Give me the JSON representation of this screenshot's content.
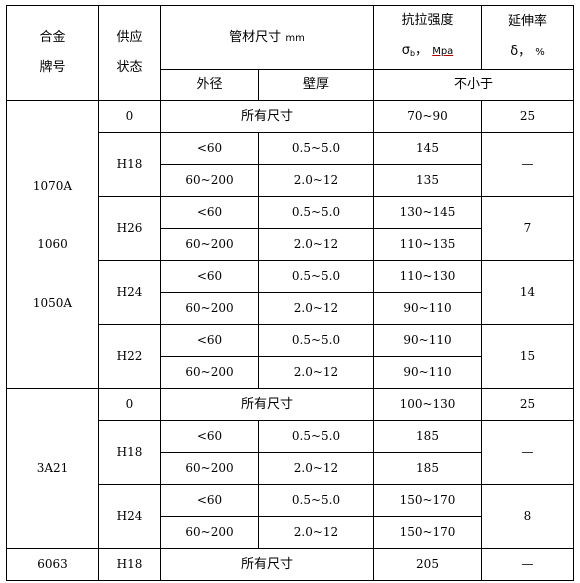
{
  "header": {
    "alloy_line1": "合金",
    "alloy_line2": "牌号",
    "temper_line1": "供应",
    "temper_line2": "状态",
    "tube_size_label": "管材尺寸",
    "tube_size_unit": "mm",
    "tensile_label": "抗拉强度",
    "tensile_symbol": "σ",
    "tensile_sub": "b",
    "tensile_sep": "，",
    "tensile_unit": "Mpa",
    "elong_label": "延伸率",
    "elong_symbol": "δ，",
    "elong_unit": "%",
    "outer_diameter": "外径",
    "wall_thickness": "壁厚",
    "not_less_than": "不小于"
  },
  "groups": [
    {
      "alloys": [
        "1070A",
        "1060",
        "1050A"
      ],
      "tempers": [
        {
          "temper": "0",
          "rows": [
            {
              "all_sizes": "所有尺寸",
              "tensile": "70~90"
            }
          ],
          "elongation": "25"
        },
        {
          "temper": "H18",
          "rows": [
            {
              "od": "<60",
              "wall": "0.5~5.0",
              "tensile": "145"
            },
            {
              "od": "60~200",
              "wall": "2.0~12",
              "tensile": "135"
            }
          ],
          "elongation": "—"
        },
        {
          "temper": "H26",
          "rows": [
            {
              "od": "<60",
              "wall": "0.5~5.0",
              "tensile": "130~145"
            },
            {
              "od": "60~200",
              "wall": "2.0~12",
              "tensile": "110~135"
            }
          ],
          "elongation": "7"
        },
        {
          "temper": "H24",
          "rows": [
            {
              "od": "<60",
              "wall": "0.5~5.0",
              "tensile": "110~130"
            },
            {
              "od": "60~200",
              "wall": "2.0~12",
              "tensile": "90~110"
            }
          ],
          "elongation": "14"
        },
        {
          "temper": "H22",
          "rows": [
            {
              "od": "<60",
              "wall": "0.5~5.0",
              "tensile": "90~110"
            },
            {
              "od": "60~200",
              "wall": "2.0~12",
              "tensile": "90~110"
            }
          ],
          "elongation": "15"
        }
      ]
    },
    {
      "alloys": [
        "3A21"
      ],
      "tempers": [
        {
          "temper": "0",
          "rows": [
            {
              "all_sizes": "所有尺寸",
              "tensile": "100~130"
            }
          ],
          "elongation": "25"
        },
        {
          "temper": "H18",
          "rows": [
            {
              "od": "<60",
              "wall": "0.5~5.0",
              "tensile": "185"
            },
            {
              "od": "60~200",
              "wall": "2.0~12",
              "tensile": "185"
            }
          ],
          "elongation": "—"
        },
        {
          "temper": "H24",
          "rows": [
            {
              "od": "<60",
              "wall": "0.5~5.0",
              "tensile": "150~170"
            },
            {
              "od": "60~200",
              "wall": "2.0~12",
              "tensile": "150~170"
            }
          ],
          "elongation": "8"
        }
      ]
    },
    {
      "alloys": [
        "6063"
      ],
      "tempers": [
        {
          "temper": "H18",
          "rows": [
            {
              "all_sizes": "所有尺寸",
              "tensile": "205"
            }
          ],
          "elongation": "—"
        }
      ]
    }
  ]
}
